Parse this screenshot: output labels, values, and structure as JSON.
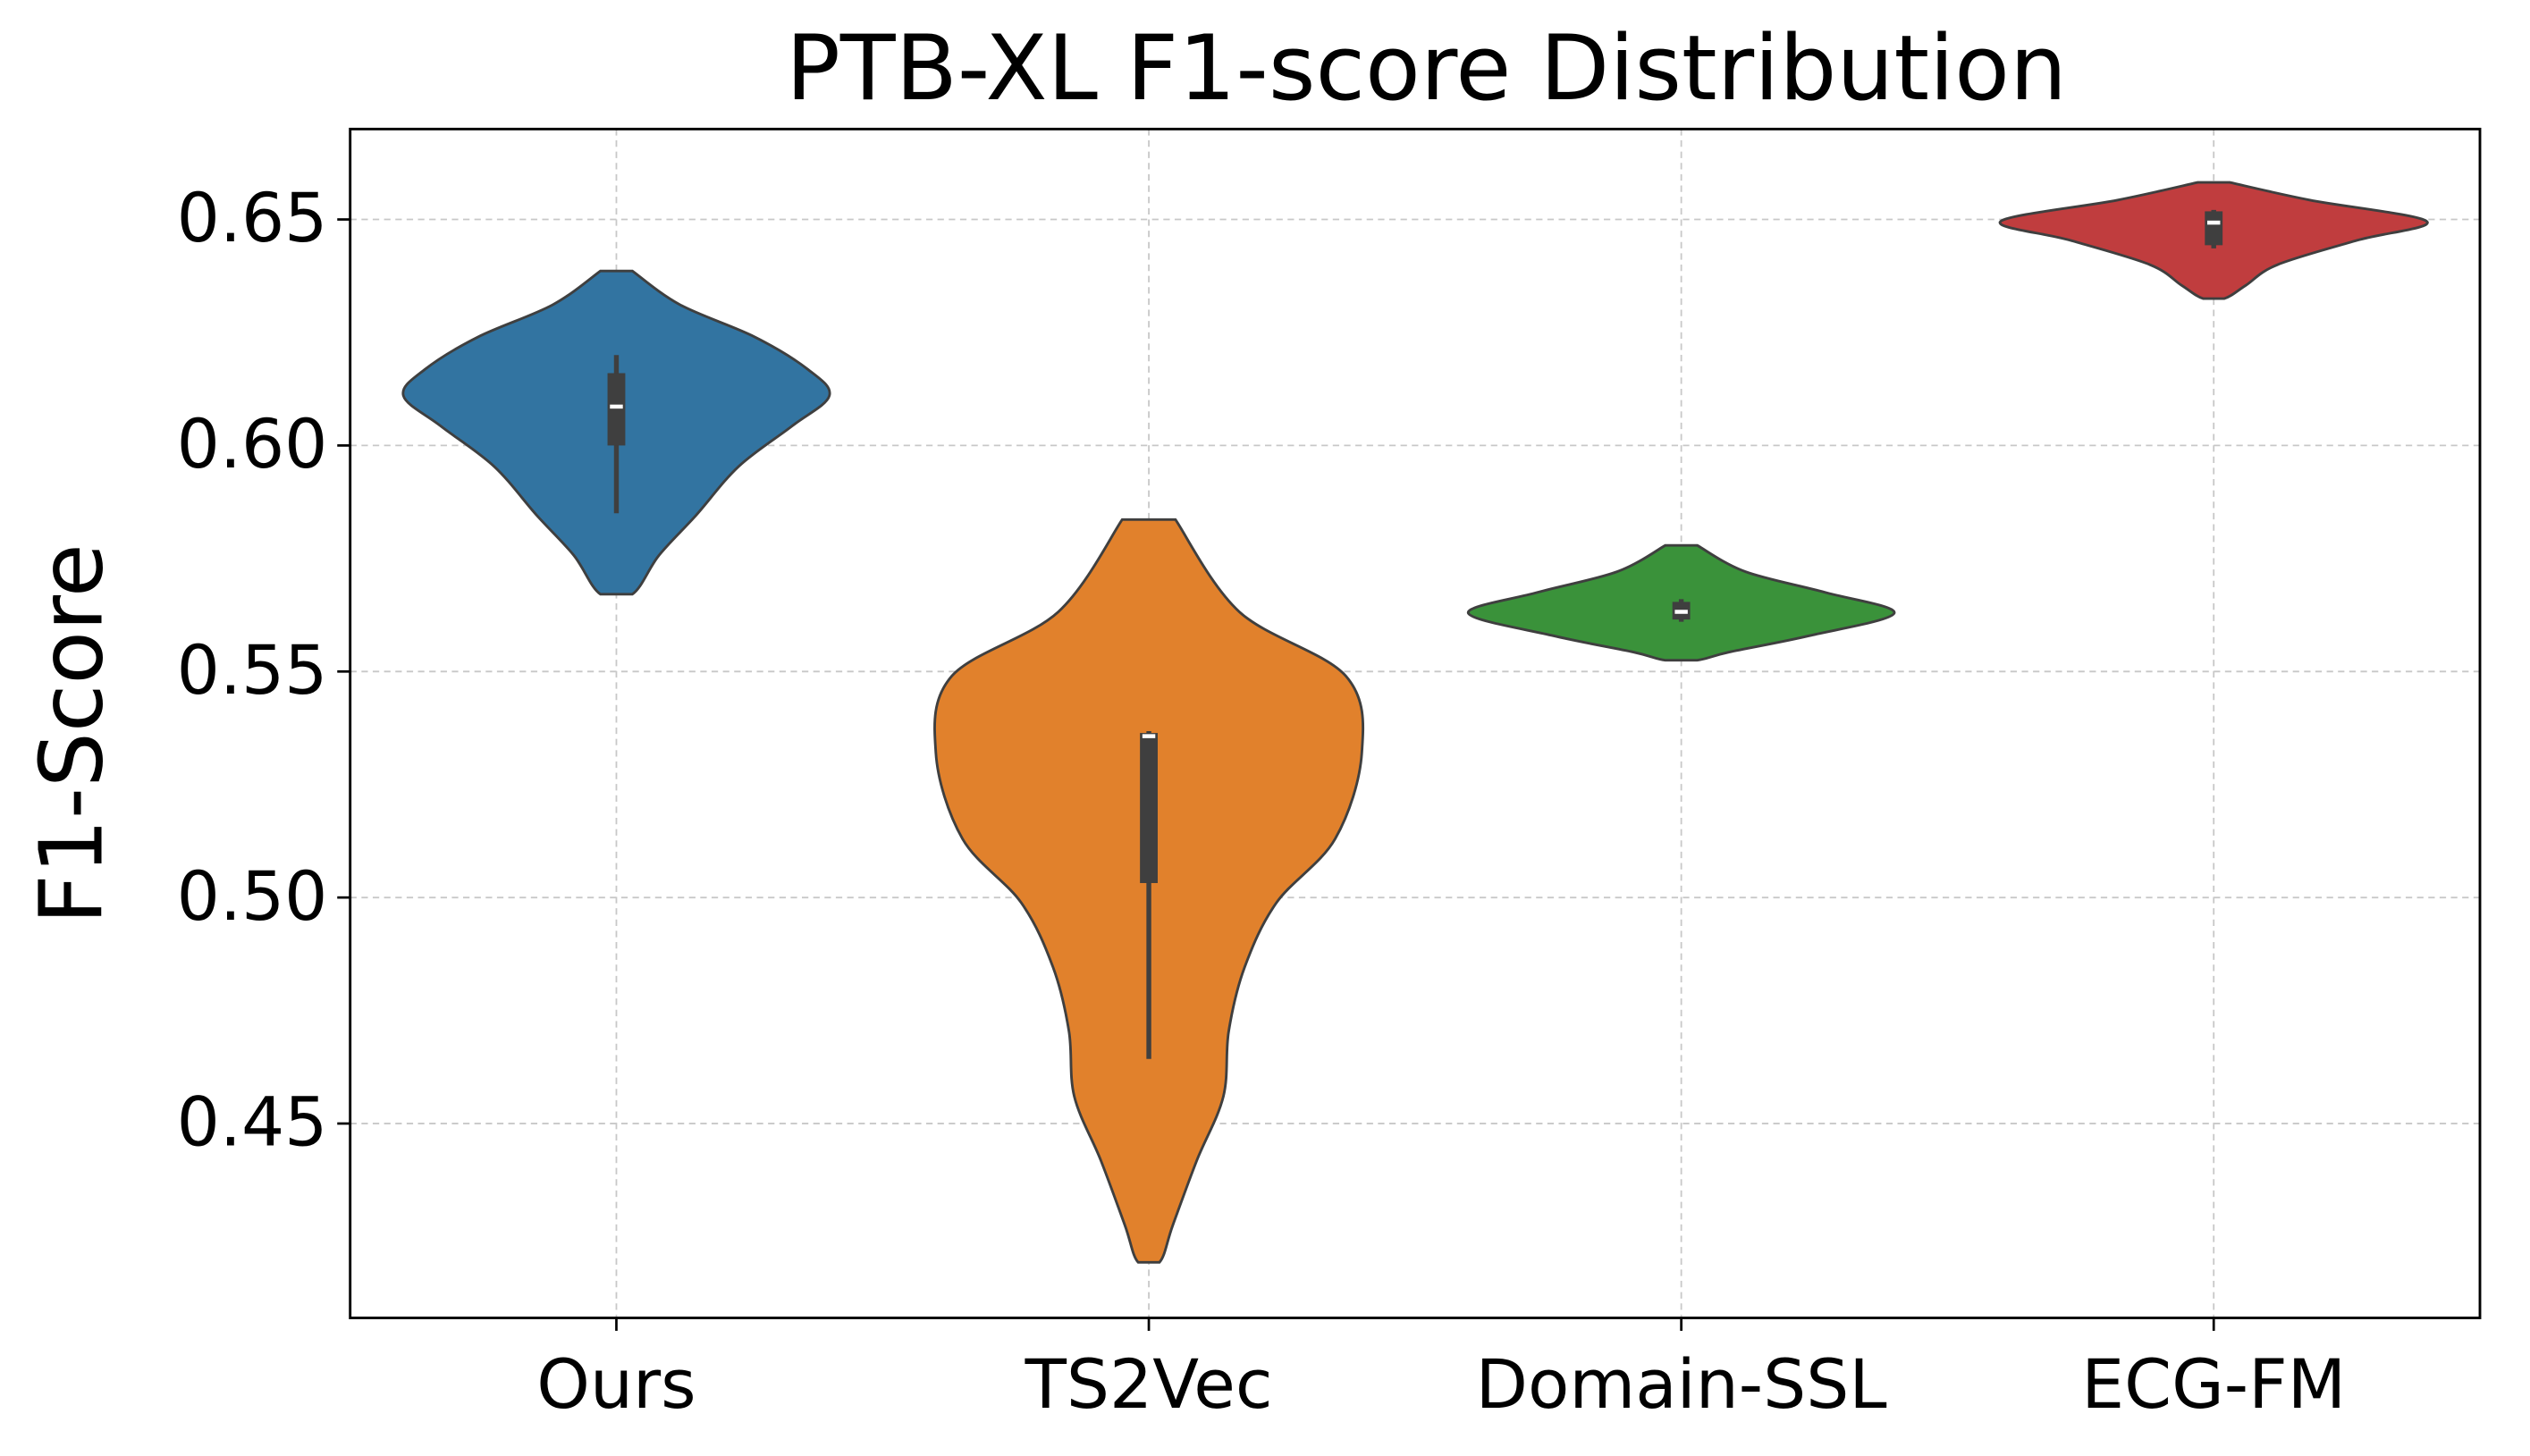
{
  "chart_data": {
    "type": "violin",
    "title": "PTB-XL F1-score Distribution",
    "y_label": "F1-Score",
    "ylim": [
      0.407,
      0.67
    ],
    "yticks": [
      {
        "value": 0.45,
        "label": "0.45"
      },
      {
        "value": 0.5,
        "label": "0.50"
      },
      {
        "value": 0.55,
        "label": "0.55"
      },
      {
        "value": 0.6,
        "label": "0.60"
      },
      {
        "value": 0.65,
        "label": "0.65"
      }
    ],
    "xlim": [
      -0.5,
      3.5
    ],
    "grid": true,
    "violins": [
      {
        "name": "Ours",
        "color": "#3274a1",
        "density_y": [
          0.6386,
          0.6311,
          0.624,
          0.6168,
          0.611,
          0.6043,
          0.5954,
          0.5846,
          0.5757,
          0.5671
        ],
        "half_width": [
          0.03,
          0.12,
          0.26,
          0.36,
          0.4,
          0.33,
          0.23,
          0.15,
          0.08,
          0.03
        ],
        "whisker_low": 0.585,
        "q1": 0.6,
        "median": 0.6086,
        "q3": 0.616,
        "whisker_high": 0.62
      },
      {
        "name": "TS2Vec",
        "color": "#e1812c",
        "density_y": [
          0.5836,
          0.5632,
          0.549,
          0.532,
          0.513,
          0.4989,
          0.4846,
          0.4704,
          0.456,
          0.4418,
          0.4275,
          0.4193
        ],
        "half_width": [
          0.05,
          0.17,
          0.37,
          0.4,
          0.35,
          0.24,
          0.18,
          0.15,
          0.14,
          0.09,
          0.045,
          0.02
        ],
        "whisker_low": 0.4643,
        "q1": 0.5032,
        "median": 0.5357,
        "q3": 0.5364,
        "whisker_high": 0.5368
      },
      {
        "name": "Domain-SSL",
        "color": "#3a923a",
        "density_y": [
          0.5779,
          0.5721,
          0.5675,
          0.5629,
          0.5579,
          0.5543,
          0.5525
        ],
        "half_width": [
          0.03,
          0.12,
          0.27,
          0.4,
          0.24,
          0.09,
          0.03
        ],
        "whisker_low": 0.561,
        "q1": 0.5615,
        "median": 0.5632,
        "q3": 0.5654,
        "whisker_high": 0.566
      },
      {
        "name": "ECG-FM",
        "color": "#c03d3e",
        "density_y": [
          0.6582,
          0.6543,
          0.6496,
          0.6454,
          0.64,
          0.6354,
          0.6325
        ],
        "half_width": [
          0.03,
          0.18,
          0.4,
          0.27,
          0.12,
          0.06,
          0.02
        ],
        "whisker_low": 0.6436,
        "q1": 0.6443,
        "median": 0.6493,
        "q3": 0.6518,
        "whisker_high": 0.6521
      }
    ]
  }
}
